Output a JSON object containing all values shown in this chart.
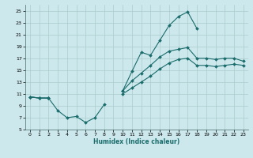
{
  "xlabel": "Humidex (Indice chaleur)",
  "bg_color": "#cce8ec",
  "grid_color": "#aacccc",
  "line_color": "#1a6b6b",
  "xlim": [
    -0.5,
    23.5
  ],
  "ylim": [
    5,
    26
  ],
  "yticks": [
    5,
    7,
    9,
    11,
    13,
    15,
    17,
    19,
    21,
    23,
    25
  ],
  "xticks": [
    0,
    1,
    2,
    3,
    4,
    5,
    6,
    7,
    8,
    9,
    10,
    11,
    12,
    13,
    14,
    15,
    16,
    17,
    18,
    19,
    20,
    21,
    22,
    23
  ],
  "line_top": {
    "x": [
      0,
      1,
      2,
      3,
      4,
      5,
      6,
      7,
      8,
      10,
      11,
      12,
      13,
      14,
      15,
      16,
      17,
      18
    ],
    "y": [
      10.5,
      10.3,
      10.3,
      8.2,
      7.0,
      7.2,
      6.2,
      7.0,
      9.2,
      11.5,
      14.8,
      18.0,
      17.5,
      20.0,
      22.5,
      24.0,
      24.8,
      22.0
    ]
  },
  "line_mid": {
    "x": [
      0,
      1,
      2,
      10,
      11,
      12,
      13,
      14,
      15,
      16,
      17,
      18,
      19,
      20,
      21,
      22,
      23
    ],
    "y": [
      10.5,
      10.3,
      10.3,
      11.5,
      13.2,
      14.5,
      15.8,
      17.2,
      18.2,
      18.5,
      18.8,
      17.0,
      17.0,
      16.8,
      17.0,
      17.0,
      16.5
    ]
  },
  "line_bot": {
    "x": [
      0,
      1,
      2,
      10,
      11,
      12,
      13,
      14,
      15,
      16,
      17,
      18,
      19,
      20,
      21,
      22,
      23
    ],
    "y": [
      10.5,
      10.3,
      10.3,
      11.0,
      12.0,
      13.0,
      14.0,
      15.2,
      16.2,
      16.8,
      17.0,
      15.8,
      15.8,
      15.6,
      15.8,
      16.0,
      15.8
    ]
  }
}
